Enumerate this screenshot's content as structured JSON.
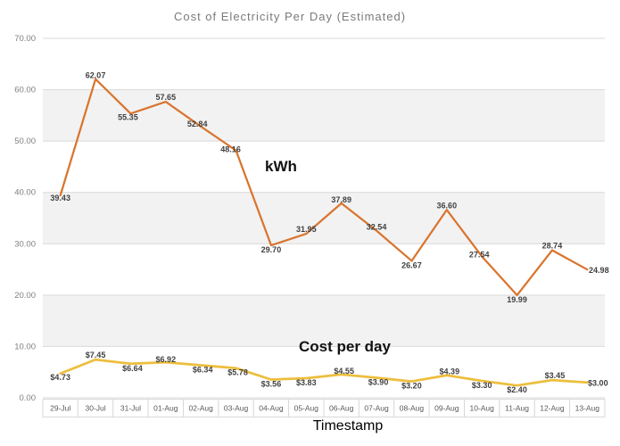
{
  "chart_data": {
    "type": "line",
    "title": "Cost of Electricity Per Day (Estimated)",
    "xlabel": "Timestamp",
    "ylabel": "",
    "ylim": [
      0,
      70
    ],
    "grid": true,
    "legend_position": "inline-annotations",
    "y_axis": {
      "ticks": [
        "0.00",
        "10.00",
        "20.00",
        "30.00",
        "40.00",
        "50.00",
        "60.00",
        "70.00"
      ],
      "tick_color": "#7f7f7f"
    },
    "categories": [
      "29-Jul",
      "30-Jul",
      "31-Jul",
      "01-Aug",
      "02-Aug",
      "03-Aug",
      "04-Aug",
      "05-Aug",
      "06-Aug",
      "07-Aug",
      "08-Aug",
      "09-Aug",
      "10-Aug",
      "11-Aug",
      "12-Aug",
      "13-Aug"
    ],
    "series": [
      {
        "name": "kWh",
        "color": "#D9752F",
        "line_width": 2.25,
        "values": [
          39.43,
          62.07,
          55.35,
          57.65,
          52.84,
          48.16,
          29.7,
          31.95,
          37.89,
          32.54,
          26.67,
          36.6,
          27.54,
          19.99,
          28.74,
          24.98
        ],
        "labels": [
          "39.43",
          "62.07",
          "55.35",
          "57.65",
          "52.84",
          "48.16",
          "29.70",
          "31.95",
          "37.89",
          "32.54",
          "26.67",
          "36.60",
          "27.54",
          "19.99",
          "28.74",
          "24.98"
        ],
        "label_offsets": [
          [
            0,
            3
          ],
          [
            0,
            -4
          ],
          [
            -3,
            4
          ],
          [
            0,
            -5
          ],
          [
            -4,
            -3
          ],
          [
            -6,
            -1
          ],
          [
            0,
            5
          ],
          [
            0,
            -5
          ],
          [
            0,
            -4
          ],
          [
            0,
            -4
          ],
          [
            0,
            5
          ],
          [
            0,
            -5
          ],
          [
            -3,
            -2
          ],
          [
            0,
            5
          ],
          [
            0,
            -5
          ],
          [
            13,
            1
          ]
        ]
      },
      {
        "name": "Cost per day",
        "color": "#EDBE3D",
        "line_width": 2.75,
        "values": [
          4.73,
          7.45,
          6.64,
          6.92,
          6.34,
          5.78,
          3.56,
          3.83,
          4.55,
          3.9,
          3.2,
          4.39,
          3.3,
          2.4,
          3.45,
          3.0
        ],
        "labels": [
          "$4.73",
          "$7.45",
          "$6.64",
          "$6.92",
          "$6.34",
          "$5.78",
          "$3.56",
          "$3.83",
          "$4.55",
          "$3.90",
          "$3.20",
          "$4.39",
          "$3.30",
          "$2.40",
          "$3.45",
          "$3.00"
        ],
        "label_offsets": [
          [
            0,
            4
          ],
          [
            0,
            -5
          ],
          [
            2,
            5
          ],
          [
            0,
            -3
          ],
          [
            2,
            5
          ],
          [
            2,
            5
          ],
          [
            0,
            5
          ],
          [
            0,
            5
          ],
          [
            3,
            -4
          ],
          [
            2,
            5
          ],
          [
            0,
            5
          ],
          [
            3,
            -4
          ],
          [
            0,
            5
          ],
          [
            0,
            5
          ],
          [
            3,
            -5
          ],
          [
            12,
            1
          ]
        ]
      }
    ],
    "annotations": {
      "kwh_label": "kWh",
      "cost_label": "Cost per day"
    },
    "style": {
      "gridline_color": "#d9d9d9",
      "band_colors": [
        "#ffffff",
        "#f2f2f2"
      ],
      "band_note": "alternating horizontal bands per 10 units, white band at top (70-60)",
      "data_label_color": "#404040",
      "category_cell_border": "#d9d9d9",
      "category_text_color": "#595959"
    }
  }
}
